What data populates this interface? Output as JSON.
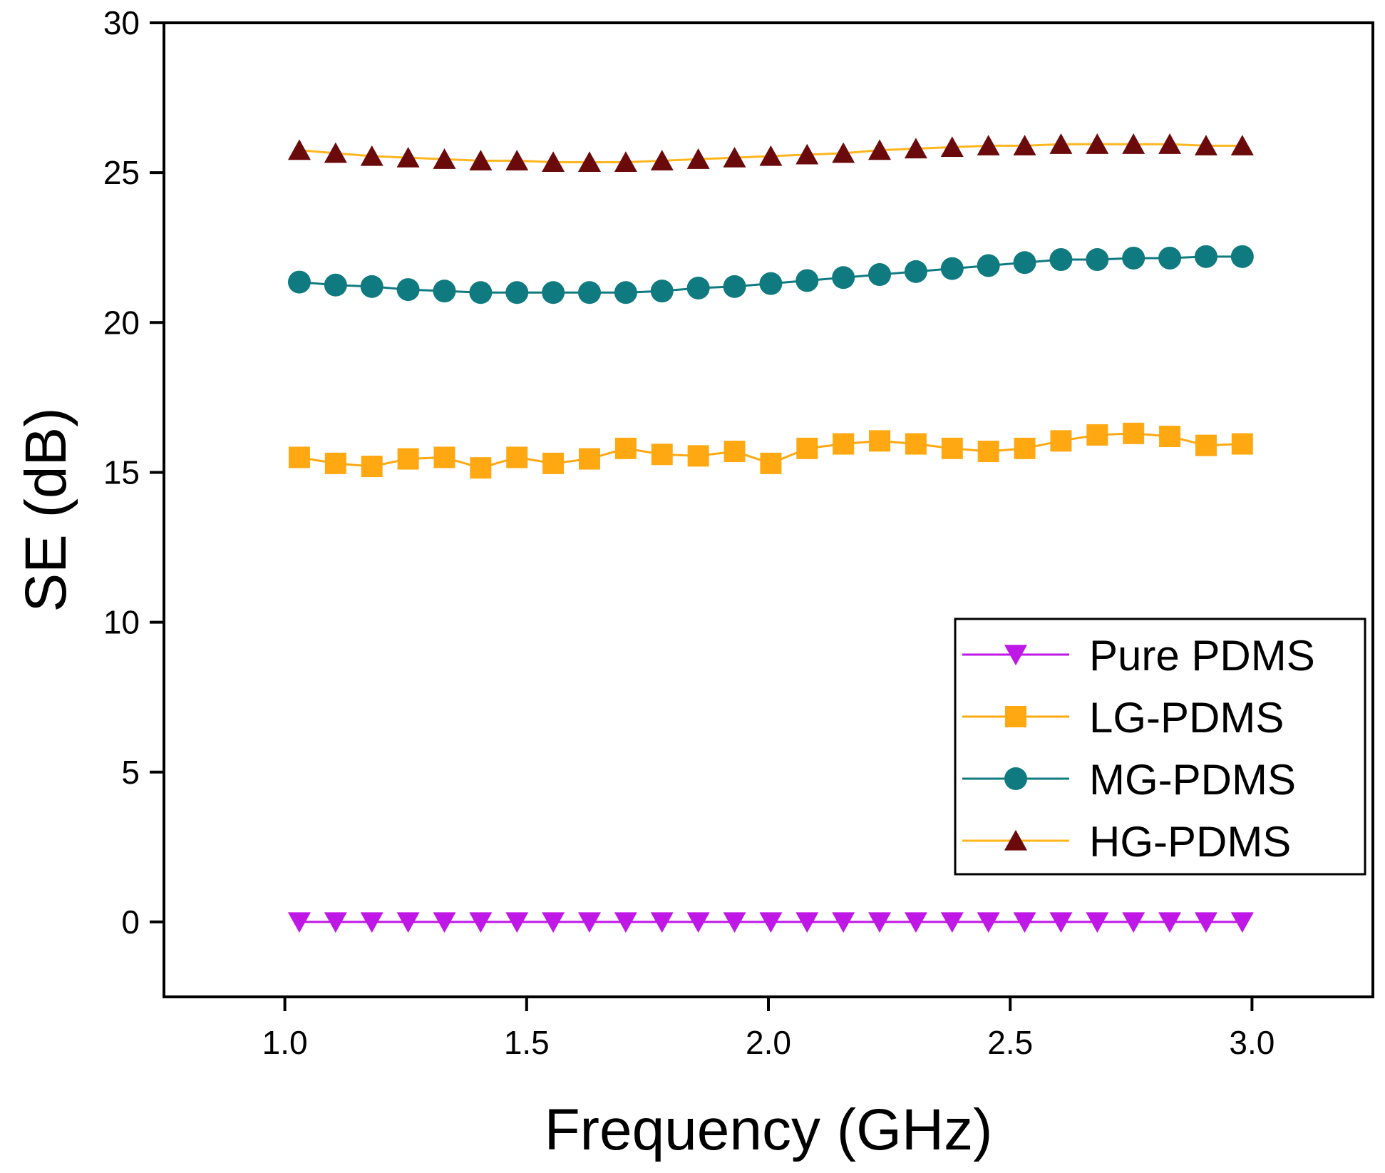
{
  "chart_data": {
    "type": "line",
    "title": "",
    "xlabel": "Frequency (GHz)",
    "ylabel": "SE (dB)",
    "xlim": [
      0.75,
      3.25
    ],
    "ylim": [
      -2.5,
      30
    ],
    "xticks": [
      "1.0",
      "1.5",
      "2.0",
      "2.5",
      "3.0"
    ],
    "xtick_values": [
      1.0,
      1.5,
      2.0,
      2.5,
      3.0
    ],
    "yticks": [
      "0",
      "5",
      "10",
      "15",
      "20",
      "25",
      "30"
    ],
    "ytick_values": [
      0,
      5,
      10,
      15,
      20,
      25,
      30
    ],
    "grid": false,
    "legend_position": "lower-right",
    "x": [
      1.03,
      1.105,
      1.18,
      1.255,
      1.33,
      1.405,
      1.48,
      1.555,
      1.63,
      1.705,
      1.78,
      1.855,
      1.93,
      2.005,
      2.08,
      2.155,
      2.23,
      2.305,
      2.38,
      2.455,
      2.53,
      2.605,
      2.68,
      2.755,
      2.83,
      2.905,
      2.98
    ],
    "series": [
      {
        "name": "Pure PDMS",
        "marker": "triangle-down",
        "color": "#BF17E6",
        "line_color": "#BF17E6",
        "values": [
          0,
          0,
          0,
          0,
          0,
          0,
          0,
          0,
          0,
          0,
          0,
          0,
          0,
          0,
          0,
          0,
          0,
          0,
          0,
          0,
          0,
          0,
          0,
          0,
          0,
          0,
          0
        ]
      },
      {
        "name": "LG-PDMS",
        "marker": "square",
        "color": "#FFA812",
        "line_color": "#FFA812",
        "values": [
          15.5,
          15.3,
          15.2,
          15.45,
          15.5,
          15.15,
          15.5,
          15.3,
          15.45,
          15.8,
          15.6,
          15.55,
          15.7,
          15.3,
          15.8,
          15.95,
          16.05,
          15.95,
          15.8,
          15.7,
          15.8,
          16.05,
          16.25,
          16.3,
          16.2,
          15.9,
          15.95
        ]
      },
      {
        "name": "MG-PDMS",
        "marker": "circle",
        "color": "#0F7A80",
        "line_color": "#0F7A80",
        "values": [
          21.35,
          21.25,
          21.2,
          21.1,
          21.05,
          21.0,
          21.0,
          21.0,
          21.0,
          21.0,
          21.05,
          21.15,
          21.2,
          21.3,
          21.4,
          21.5,
          21.6,
          21.7,
          21.8,
          21.9,
          22.0,
          22.1,
          22.1,
          22.15,
          22.15,
          22.2,
          22.2
        ]
      },
      {
        "name": "HG-PDMS",
        "marker": "triangle-up",
        "color": "#6B0A0A",
        "line_color": "#FFB61E",
        "values": [
          25.75,
          25.65,
          25.55,
          25.5,
          25.45,
          25.4,
          25.4,
          25.35,
          25.35,
          25.35,
          25.4,
          25.45,
          25.5,
          25.55,
          25.6,
          25.65,
          25.75,
          25.8,
          25.85,
          25.9,
          25.9,
          25.95,
          25.95,
          25.95,
          25.95,
          25.9,
          25.9
        ]
      }
    ]
  }
}
